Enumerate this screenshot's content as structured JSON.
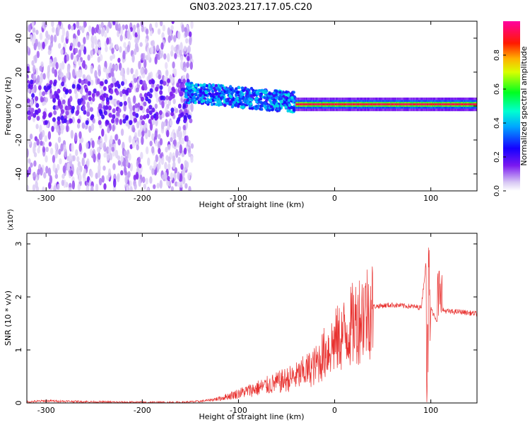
{
  "title": "GN03.2023.217.17.05.C20",
  "colors": {
    "snr_line": "#e8312f",
    "axis": "#000000",
    "spectro_background": "#ffffff"
  },
  "chart_data": [
    {
      "type": "heatmap",
      "title": "GN03.2023.217.17.05.C20",
      "xlabel": "Height of straight line (km)",
      "ylabel": "Frequency (Hz)",
      "xlim": [
        -320,
        148
      ],
      "ylim": [
        -50,
        50
      ],
      "xticks": [
        "-300",
        "-200",
        "-100",
        "0",
        "100"
      ],
      "yticks": [
        "-40",
        "-20",
        "0",
        "20",
        "40"
      ],
      "colorbar": {
        "label": "Normalized spectral amplitude",
        "range": [
          0,
          1
        ],
        "ticks": [
          "0.0",
          "0.2",
          "0.4",
          "0.6",
          "0.8"
        ],
        "colormap": "rainbow (white-purple-blue-cyan-green-yellow-red-magenta)"
      },
      "regions": [
        {
          "x": [
            -320,
            -148
          ],
          "freq": [
            -50,
            50
          ],
          "amplitude": "noise, 0.05-0.2"
        },
        {
          "x": [
            -155,
            -40
          ],
          "freq": [
            -8,
            15
          ],
          "amplitude": "0.2-0.45"
        },
        {
          "x": [
            -40,
            148
          ],
          "freq_center": 1,
          "amplitude": "0.7-1.0"
        }
      ]
    },
    {
      "type": "line",
      "xlabel": "Height of straight line (km)",
      "ylabel": "SNR (10 * v/v)",
      "y_multiplier": "(x10⁴)",
      "xlim": [
        -320,
        148
      ],
      "ylim": [
        0,
        3.2
      ],
      "xticks": [
        "-300",
        "-200",
        "-100",
        "0",
        "100"
      ],
      "yticks": [
        "0",
        "1",
        "2",
        "3"
      ],
      "x": [
        -320,
        -300,
        -250,
        -200,
        -160,
        -140,
        -120,
        -100,
        -80,
        -60,
        -40,
        -20,
        -10,
        0,
        10,
        20,
        30,
        40,
        60,
        80,
        90,
        96,
        98,
        100,
        108,
        112,
        120,
        130,
        148
      ],
      "y": [
        0.02,
        0.04,
        0.02,
        0.01,
        0.01,
        0.03,
        0.08,
        0.18,
        0.28,
        0.38,
        0.5,
        0.7,
        0.95,
        1.15,
        1.3,
        1.5,
        1.7,
        1.82,
        1.85,
        1.82,
        1.8,
        2.8,
        0.1,
        1.78,
        1.5,
        1.75,
        1.72,
        1.72,
        1.68
      ]
    }
  ]
}
